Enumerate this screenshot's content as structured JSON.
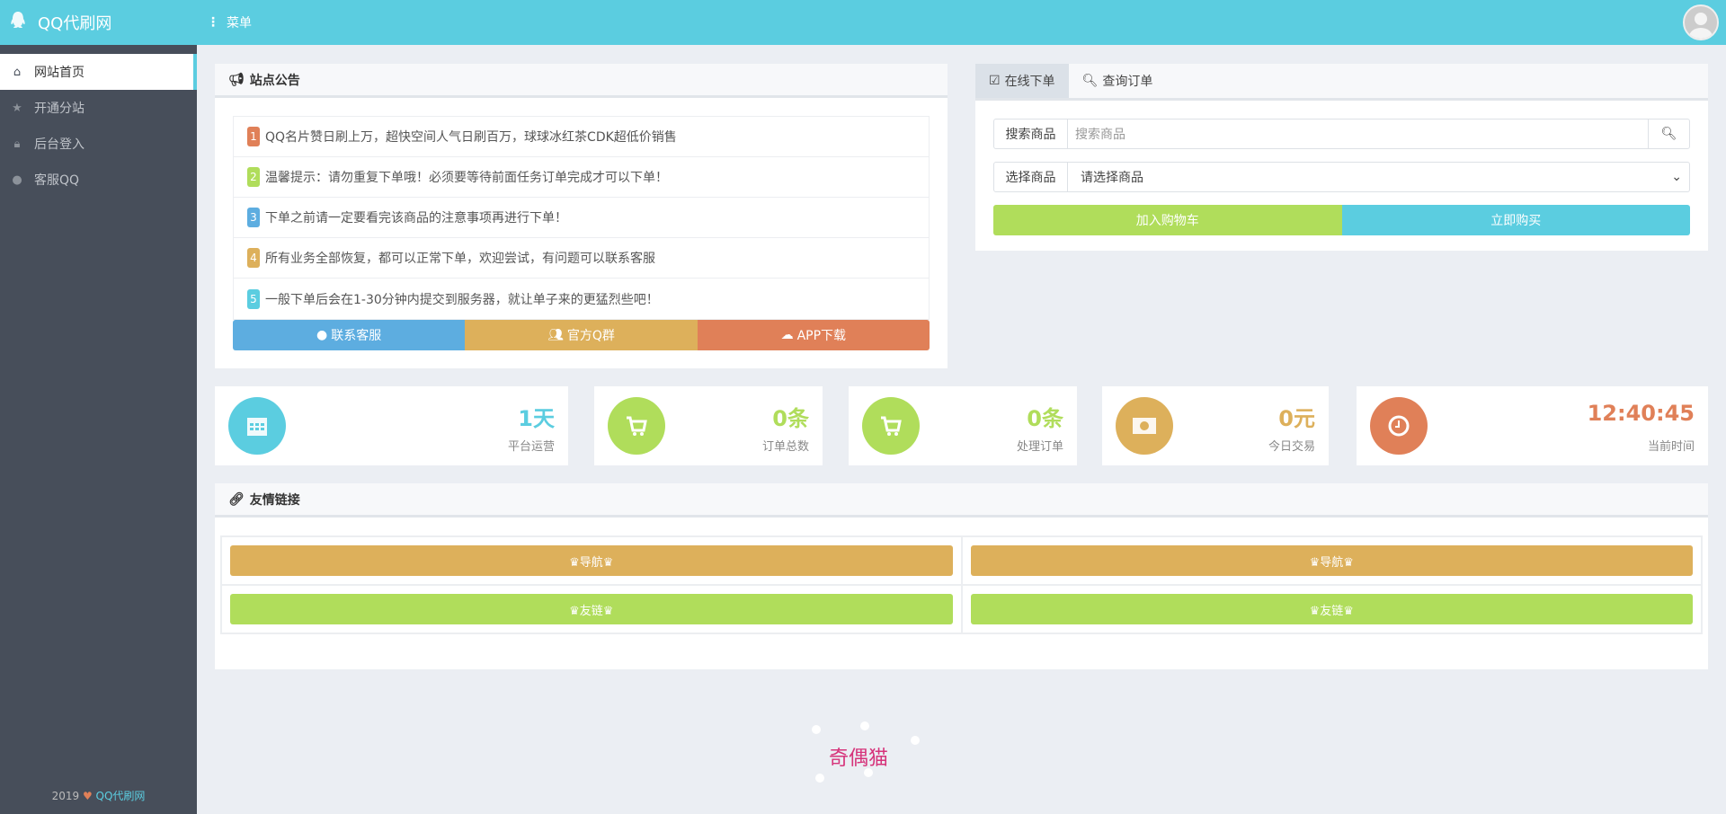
{
  "header": {
    "brand": "QQ代刷网",
    "menu_label": "菜单"
  },
  "sidebar": {
    "items": [
      {
        "label": "网站首页",
        "icon": "home-icon"
      },
      {
        "label": "开通分站",
        "icon": "star-icon"
      },
      {
        "label": "后台登入",
        "icon": "lock-icon"
      },
      {
        "label": "客服QQ",
        "icon": "qq-icon"
      }
    ],
    "footer": {
      "year": "2019",
      "site": "QQ代刷网"
    }
  },
  "notice": {
    "title": "站点公告",
    "items": [
      {
        "num": "1",
        "text": "QQ名片赞日刷上万，超快空间人气日刷百万，球球冰红茶CDK超低价销售",
        "color": "#e08058"
      },
      {
        "num": "2",
        "text": "温馨提示：请勿重复下单哦！必须要等待前面任务订单完成才可以下单！",
        "color": "#b0dd5b"
      },
      {
        "num": "3",
        "text": "下单之前请一定要看完该商品的注意事项再进行下单！",
        "color": "#5dade0"
      },
      {
        "num": "4",
        "text": "所有业务全部恢复，都可以正常下单，欢迎尝试，有问题可以联系客服",
        "color": "#ddb05b"
      },
      {
        "num": "5",
        "text": "一般下单后会在1-30分钟内提交到服务器，就让单子来的更猛烈些吧！",
        "color": "#5bcde0"
      }
    ],
    "buttons": [
      {
        "label": "联系客服",
        "color": "#5dade0"
      },
      {
        "label": "官方Q群",
        "color": "#ddb05b"
      },
      {
        "label": "APP下载",
        "color": "#e08058"
      }
    ]
  },
  "order": {
    "tabs": [
      "在线下单",
      "查询订单"
    ],
    "search_label": "搜索商品",
    "search_placeholder": "搜索商品",
    "select_label": "选择商品",
    "select_value": "请选择商品",
    "add_cart": "加入购物车",
    "buy_now": "立即购买"
  },
  "stats": [
    {
      "value": "1天",
      "label": "平台运营",
      "color": "#5bcde0",
      "icon": "calendar-icon"
    },
    {
      "value": "0条",
      "label": "订单总数",
      "color": "#b0dd5b",
      "icon": "cart-plus-icon"
    },
    {
      "value": "0条",
      "label": "处理订单",
      "color": "#b0dd5b",
      "icon": "cart-plus-icon"
    },
    {
      "value": "0元",
      "label": "今日交易",
      "color": "#ddb05b",
      "icon": "money-icon"
    },
    {
      "value": "12:40:45",
      "label": "当前时间",
      "color": "#e08058",
      "icon": "clock-icon"
    }
  ],
  "links": {
    "title": "友情链接",
    "items": [
      "♛导航♛",
      "♛导航♛",
      "♛友链♛",
      "♛友链♛"
    ]
  },
  "colors": {
    "primary": "#5bcde0",
    "green": "#b0dd5b",
    "orange": "#ddb05b",
    "red": "#e08058",
    "blue": "#5dade0",
    "sidebar": "#474e5a"
  },
  "footer_logo": "奇偶猫"
}
